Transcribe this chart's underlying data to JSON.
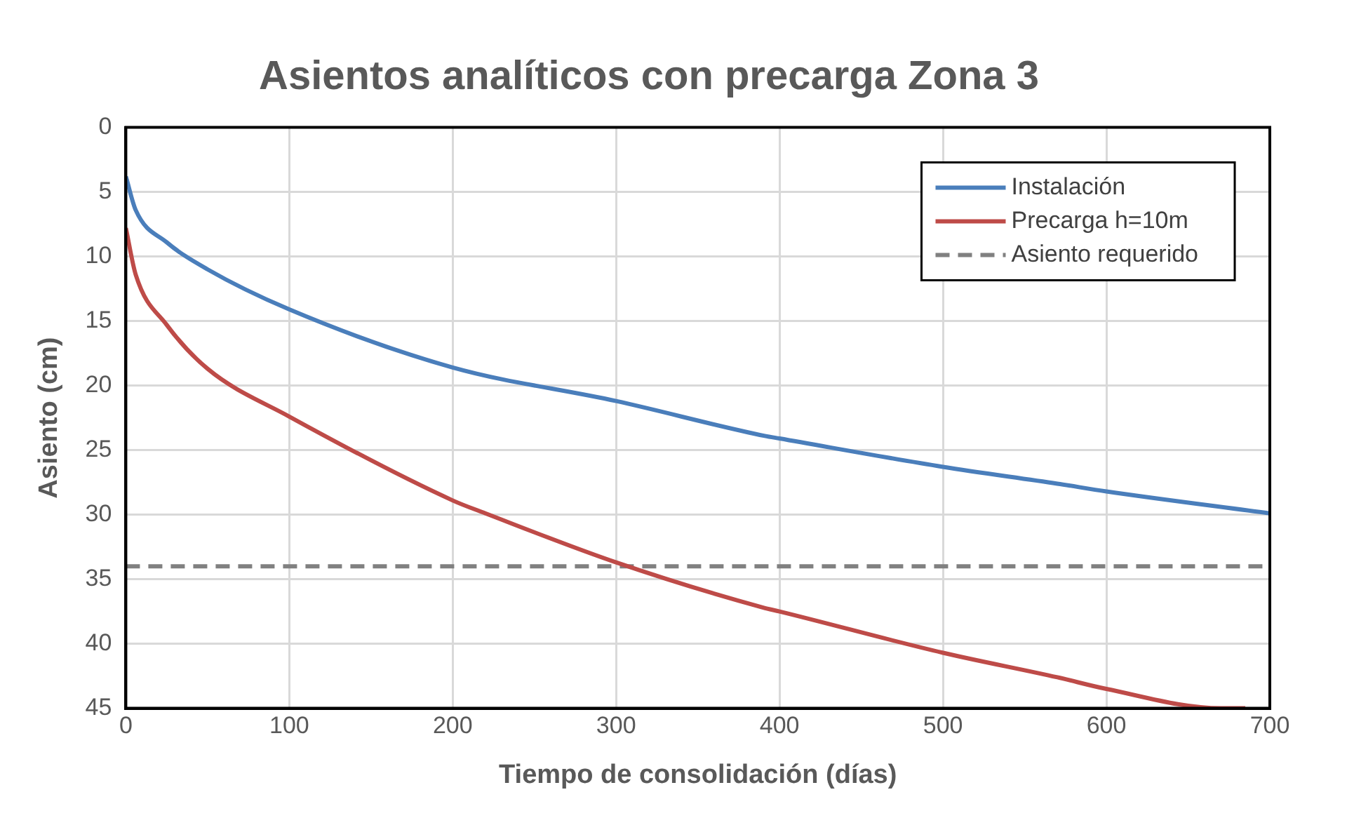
{
  "chart_data": {
    "type": "line",
    "title": "Asientos analíticos con precarga Zona 3",
    "xlabel": "Tiempo de consolidación (días)",
    "ylabel": "Asiento (cm)",
    "xlim": [
      0,
      700
    ],
    "xticks": [
      0,
      100,
      200,
      300,
      400,
      500,
      600,
      700
    ],
    "ylim": [
      45,
      0
    ],
    "yticks": [
      0,
      5,
      10,
      15,
      20,
      25,
      30,
      35,
      40,
      45
    ],
    "grid": true,
    "legend": "top right",
    "marker": "none",
    "series": [
      {
        "name": "Instalación",
        "color": "#4a7ebb",
        "x": [
          0,
          6,
          25,
          50,
          100,
          200,
          300,
          391,
          400,
          500,
          570,
          600,
          700
        ],
        "values": [
          3.8,
          6.4,
          8.9,
          11.0,
          14.1,
          18.6,
          21.2,
          23.9,
          24.1,
          26.3,
          27.6,
          28.2,
          29.9
        ]
      },
      {
        "name": "Precarga h=10m",
        "color": "#be4b48",
        "x": [
          0,
          6,
          25,
          50,
          100,
          200,
          220,
          300,
          390,
          400,
          500,
          570,
          600,
          670,
          685
        ],
        "values": [
          7.8,
          11.4,
          15.3,
          18.7,
          22.4,
          28.9,
          29.9,
          33.7,
          37.2,
          37.5,
          40.7,
          42.6,
          43.5,
          45,
          45
        ]
      }
    ],
    "ref_lines": [
      {
        "axis": "y",
        "value": 34,
        "label": "Asiento requerido",
        "color": "#808080",
        "line_style": "dashed"
      }
    ]
  }
}
